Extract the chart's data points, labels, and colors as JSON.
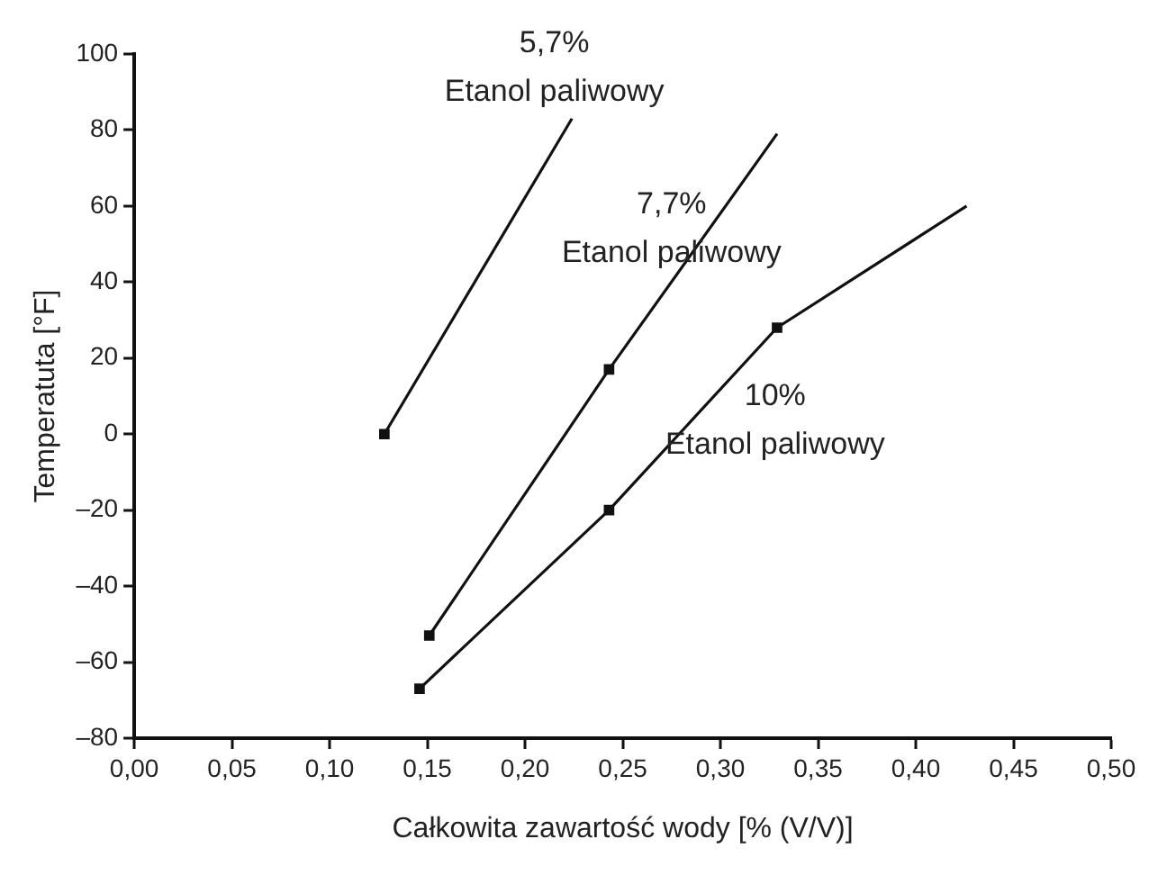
{
  "chart_data": {
    "type": "line",
    "xlabel": "Całkowita zawartość wody [% (V/V)]",
    "ylabel": "Temperatuta [°F]",
    "xlim": [
      0,
      0.5
    ],
    "xticks": [
      {
        "value": 0,
        "label": "0,00"
      },
      {
        "value": 0.05,
        "label": "0,05"
      },
      {
        "value": 0.1,
        "label": "0,10"
      },
      {
        "value": 0.15,
        "label": "0,15"
      },
      {
        "value": 0.2,
        "label": "0,20"
      },
      {
        "value": 0.25,
        "label": "0,25"
      },
      {
        "value": 0.3,
        "label": "0,30"
      },
      {
        "value": 0.35,
        "label": "0,35"
      },
      {
        "value": 0.4,
        "label": "0,40"
      },
      {
        "value": 0.45,
        "label": "0,45"
      },
      {
        "value": 0.5,
        "label": "0,50"
      }
    ],
    "ylim": [
      -80,
      100
    ],
    "yticks": [
      {
        "value": -80,
        "label": "–80"
      },
      {
        "value": -60,
        "label": "–60"
      },
      {
        "value": -40,
        "label": "–40"
      },
      {
        "value": -20,
        "label": "–20"
      },
      0,
      20,
      40,
      60,
      80,
      100
    ],
    "grid": false,
    "legend": false,
    "marker": "square",
    "line_style": "solid",
    "series": [
      {
        "color": "#111111",
        "x": [
          0.128,
          0.224
        ],
        "values": [
          0,
          83
        ]
      },
      {
        "color": "#111111",
        "x": [
          0.151,
          0.243,
          0.329
        ],
        "values": [
          -53,
          17,
          79
        ]
      },
      {
        "color": "#111111",
        "x": [
          0.146,
          0.243,
          0.329,
          0.426
        ],
        "values": [
          -67,
          -20,
          28,
          60
        ]
      }
    ],
    "annotations": [
      "5,7%\nEtanol paliwowy",
      "7,7%\nEtanol paliwowy",
      "10%\nEtanol paliwowy"
    ]
  }
}
